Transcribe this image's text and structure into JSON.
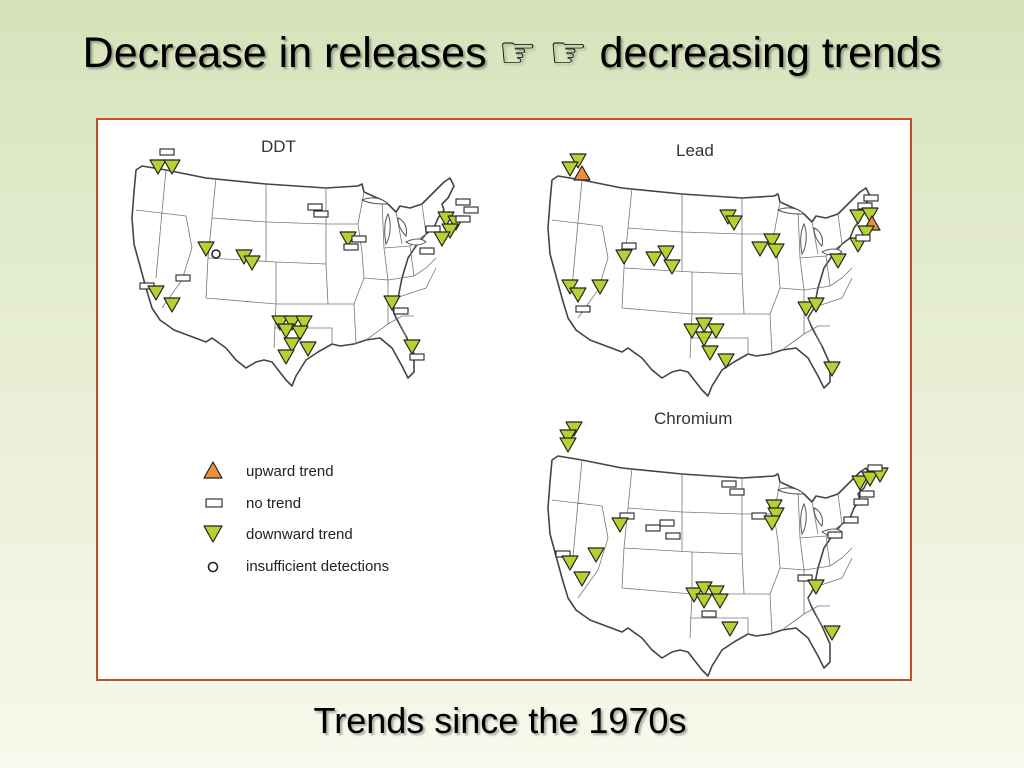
{
  "title": "Decrease in releases ☞ ☞ decreasing trends",
  "subtitle": "Trends since the 1970s",
  "maps": [
    {
      "name": "DDT"
    },
    {
      "name": "Lead"
    },
    {
      "name": "Chromium"
    }
  ],
  "legend": {
    "upward": "upward trend",
    "no_trend": "no trend",
    "downward": "downward trend",
    "insufficient": "insufficient detections"
  },
  "colors": {
    "downward": "#b8d032",
    "upward": "#ec8f3b",
    "frame": "#c0502a"
  }
}
